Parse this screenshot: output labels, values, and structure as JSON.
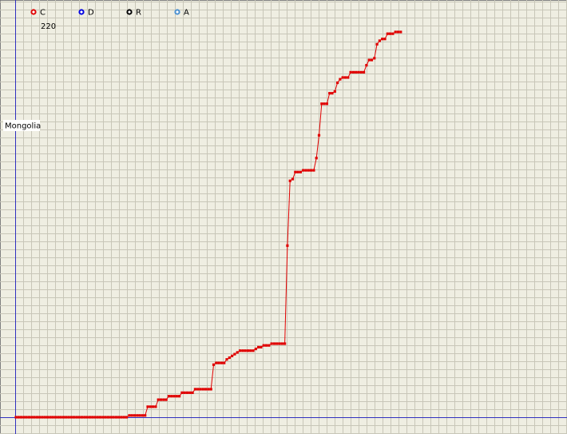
{
  "chart_data": {
    "type": "line",
    "region_label": "Mongolia",
    "legend": [
      {
        "name": "C",
        "color": "#e00000"
      },
      {
        "name": "D",
        "color": "#0000e0"
      },
      {
        "name": "R",
        "color": "#000000"
      },
      {
        "name": "A",
        "color": "#4a90d0"
      }
    ],
    "series": [
      {
        "name": "C",
        "color": "#e00000",
        "values": [
          0,
          0,
          0,
          0,
          0,
          0,
          0,
          0,
          0,
          0,
          0,
          0,
          0,
          0,
          0,
          0,
          0,
          0,
          0,
          0,
          0,
          0,
          0,
          0,
          0,
          0,
          0,
          0,
          0,
          0,
          0,
          0,
          0,
          0,
          0,
          0,
          0,
          0,
          0,
          0,
          0,
          0,
          0,
          1,
          1,
          1,
          1,
          1,
          1,
          1,
          6,
          6,
          6,
          6,
          10,
          10,
          10,
          10,
          12,
          12,
          12,
          12,
          12,
          14,
          14,
          14,
          14,
          14,
          16,
          16,
          16,
          16,
          16,
          16,
          16,
          30,
          31,
          31,
          31,
          31,
          33,
          34,
          35,
          36,
          37,
          38,
          38,
          38,
          38,
          38,
          38,
          39,
          40,
          40,
          41,
          41,
          41,
          42,
          42,
          42,
          42,
          42,
          42,
          98,
          135,
          136,
          140,
          140,
          140,
          141,
          141,
          141,
          141,
          141,
          148,
          161,
          179,
          179,
          179,
          185,
          185,
          186,
          191,
          193,
          194,
          194,
          194,
          197,
          197,
          197,
          197,
          197,
          197,
          201,
          204,
          204,
          205,
          213,
          215,
          216,
          216,
          219,
          219,
          219,
          220,
          220,
          220
        ]
      }
    ],
    "ylim": [
      0,
      220
    ],
    "yticks": [
      220
    ]
  }
}
